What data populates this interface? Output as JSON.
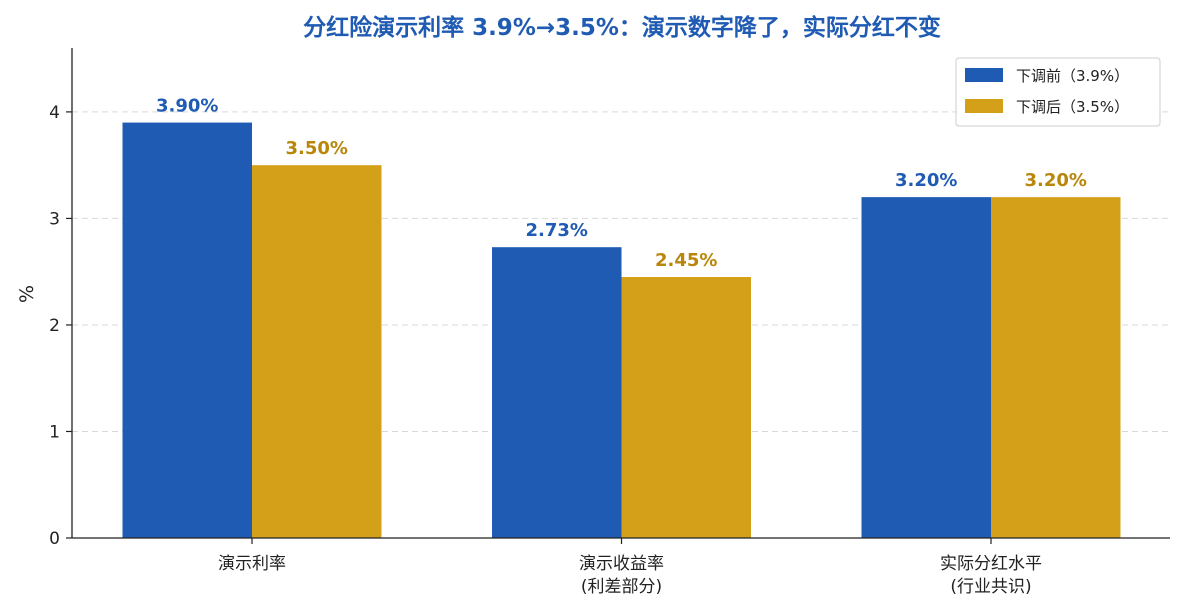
{
  "chart_data": {
    "type": "bar",
    "title": "分红险演示利率 3.9%→3.5%：演示数字降了，实际分红不变",
    "xlabel": "",
    "ylabel": "%",
    "ylim": [
      0,
      4.6
    ],
    "yticks": [
      "0",
      "1",
      "2",
      "3",
      "4"
    ],
    "grid": true,
    "legend_position": "top-right",
    "categories": [
      [
        "演示利率"
      ],
      [
        "演示收益率",
        "(利差部分)"
      ],
      [
        "实际分红水平",
        "(行业共识)"
      ]
    ],
    "series": [
      {
        "name": "下调前（3.9%）",
        "color": "#1f5bb3",
        "values": [
          3.9,
          2.73,
          3.2
        ],
        "labels": [
          "3.90%",
          "2.73%",
          "3.20%"
        ]
      },
      {
        "name": "下调后（3.5%）",
        "color": "#d4a01a",
        "label_color": "#b8860b",
        "values": [
          3.5,
          2.45,
          3.2
        ],
        "labels": [
          "3.50%",
          "2.45%",
          "3.20%"
        ]
      }
    ]
  }
}
